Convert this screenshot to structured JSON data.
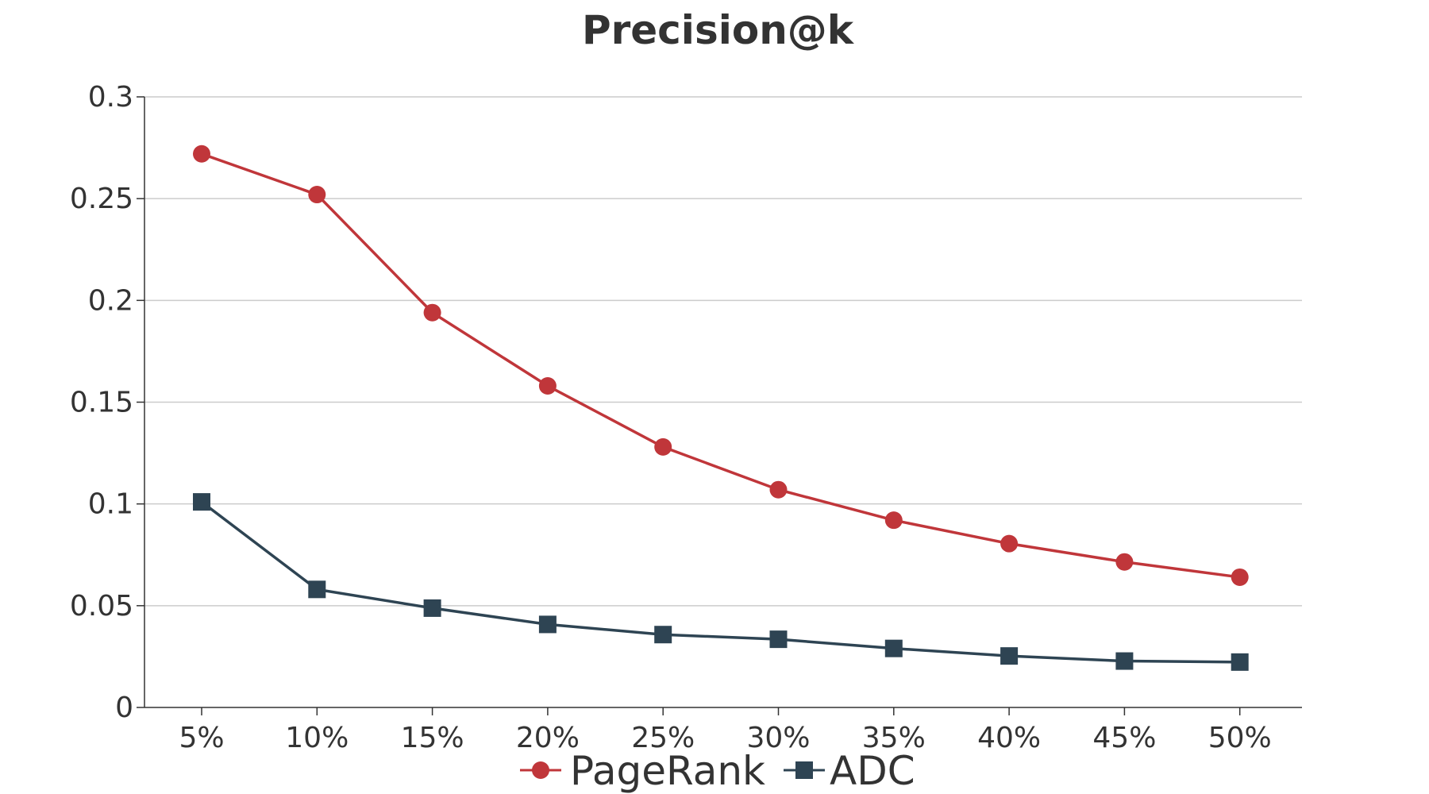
{
  "chart_data": {
    "type": "line",
    "title": "Precision@k",
    "xlabel": "",
    "ylabel": "",
    "categories": [
      "5%",
      "10%",
      "15%",
      "20%",
      "25%",
      "30%",
      "35%",
      "40%",
      "45%",
      "50%"
    ],
    "ylim": [
      0,
      0.3
    ],
    "yticks": [
      "0",
      "0.05",
      "0.1",
      "0.15",
      "0.2",
      "0.25",
      "0.3"
    ],
    "ytick_values": [
      0,
      0.05,
      0.1,
      0.15,
      0.2,
      0.25,
      0.3
    ],
    "grid": true,
    "legend_position": "bottom",
    "series": [
      {
        "name": "PageRank",
        "marker": "circle",
        "color": "#C0363A",
        "values": [
          0.272,
          0.252,
          0.194,
          0.158,
          0.128,
          0.107,
          0.092,
          0.0805,
          0.0715,
          0.064
        ]
      },
      {
        "name": "ADC",
        "marker": "square",
        "color": "#2E4453",
        "values": [
          0.101,
          0.058,
          0.0488,
          0.0408,
          0.0358,
          0.0335,
          0.029,
          0.0253,
          0.0228,
          0.0223
        ]
      }
    ]
  }
}
